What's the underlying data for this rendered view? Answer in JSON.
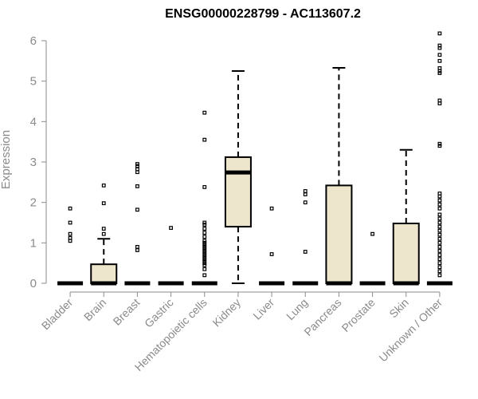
{
  "chart_data": {
    "type": "box",
    "title": "ENSG00000228799 - AC113607.2",
    "ylabel": "Expression",
    "ylim": [
      0,
      6.2
    ],
    "yticks": [
      0,
      1,
      2,
      3,
      4,
      5,
      6
    ],
    "box_fill": "#ede6cc",
    "categories": [
      "Bladder",
      "Brain",
      "Breast",
      "Gastric",
      "Hematopoietic cells",
      "Kidney",
      "Liver",
      "Lung",
      "Pancreas",
      "Prostate",
      "Skin",
      "Unknown / Other"
    ],
    "boxes": [
      {
        "q1": 0,
        "median": 0,
        "q3": 0,
        "whisker_low": 0,
        "whisker_high": 0,
        "outliers": [
          1.05,
          1.12,
          1.22,
          1.5,
          1.85
        ]
      },
      {
        "q1": 0,
        "median": 0,
        "q3": 0.47,
        "whisker_low": 0,
        "whisker_high": 1.1,
        "outliers": [
          1.22,
          1.35,
          1.98,
          2.42
        ]
      },
      {
        "q1": 0,
        "median": 0,
        "q3": 0,
        "whisker_low": 0,
        "whisker_high": 0,
        "outliers": [
          0.82,
          0.9,
          1.82,
          2.4,
          2.75,
          2.82,
          2.9,
          2.95
        ]
      },
      {
        "q1": 0,
        "median": 0,
        "q3": 0,
        "whisker_low": 0,
        "whisker_high": 0,
        "outliers": [
          1.37
        ]
      },
      {
        "q1": 0,
        "median": 0,
        "q3": 0,
        "whisker_low": 0,
        "whisker_high": 0,
        "outliers": [
          0.2,
          0.35,
          0.45,
          0.5,
          0.55,
          0.6,
          0.65,
          0.7,
          0.75,
          0.8,
          0.85,
          0.9,
          0.95,
          1.0,
          1.05,
          1.15,
          1.25,
          1.35,
          1.45,
          1.5,
          2.38,
          3.55,
          4.22
        ]
      },
      {
        "q1": 1.4,
        "median": 2.74,
        "q3": 3.12,
        "whisker_low": 0,
        "whisker_high": 5.25,
        "outliers": []
      },
      {
        "q1": 0,
        "median": 0,
        "q3": 0,
        "whisker_low": 0,
        "whisker_high": 0,
        "outliers": [
          0.72,
          1.85
        ]
      },
      {
        "q1": 0,
        "median": 0,
        "q3": 0,
        "whisker_low": 0,
        "whisker_high": 0,
        "outliers": [
          0.78,
          2.0,
          2.2,
          2.28
        ]
      },
      {
        "q1": 0,
        "median": 0,
        "q3": 2.42,
        "whisker_low": 0,
        "whisker_high": 5.33,
        "outliers": []
      },
      {
        "q1": 0,
        "median": 0,
        "q3": 0,
        "whisker_low": 0,
        "whisker_high": 0,
        "outliers": [
          1.22
        ]
      },
      {
        "q1": 0,
        "median": 0,
        "q3": 1.48,
        "whisker_low": 0,
        "whisker_high": 3.3,
        "outliers": []
      },
      {
        "q1": 0,
        "median": 0,
        "q3": 0,
        "whisker_low": 0,
        "whisker_high": 0,
        "outliers": [
          0.2,
          0.3,
          0.4,
          0.5,
          0.6,
          0.7,
          0.8,
          0.9,
          1.0,
          1.1,
          1.2,
          1.3,
          1.4,
          1.5,
          1.6,
          1.7,
          1.85,
          1.95,
          2.05,
          2.15,
          2.22,
          3.4,
          3.45,
          4.45,
          4.52,
          5.2,
          5.25,
          5.32,
          5.5,
          5.65,
          5.82,
          5.88,
          6.18
        ]
      }
    ]
  }
}
